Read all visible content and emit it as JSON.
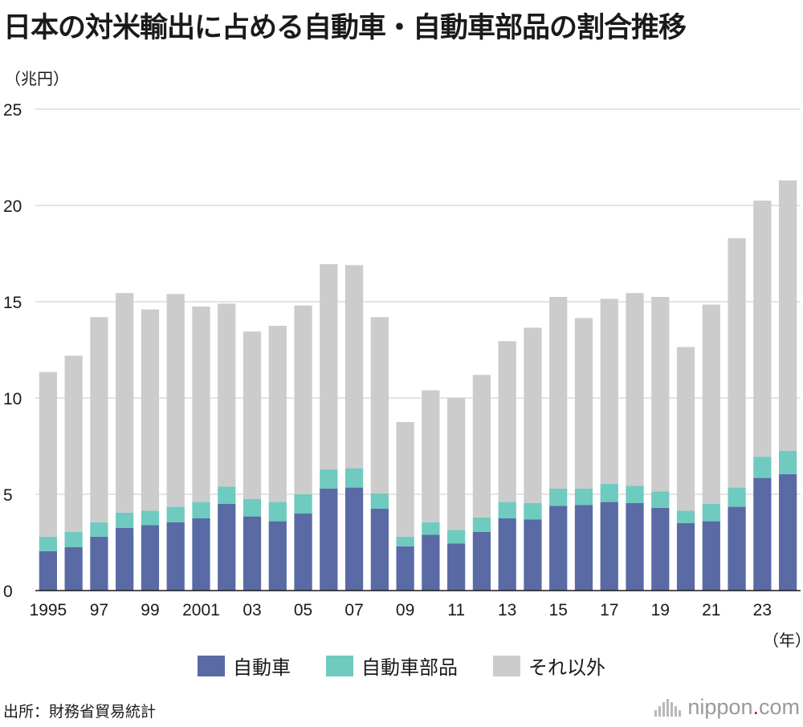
{
  "header": {
    "title": "日本の対米輸出に占める自動車・自動車部品の割合推移",
    "unit_y": "（兆円）",
    "unit_x": "（年）"
  },
  "footer": {
    "source": "出所：財務省貿易統計",
    "logo_main": "nippon",
    "logo_dot": ".",
    "logo_suffix": "com",
    "logo_accent": "#e2001a"
  },
  "chart_data": {
    "type": "bar",
    "stacked": true,
    "title": "日本の対米輸出に占める自動車・自動車部品の割合推移",
    "ylabel": "（兆円）",
    "xlabel": "（年）",
    "ylim": [
      0,
      25
    ],
    "yticks": [
      0,
      5,
      10,
      15,
      20,
      25
    ],
    "grid": true,
    "legend_position": "bottom-center",
    "categories": [
      "1995",
      "1996",
      "1997",
      "1998",
      "1999",
      "2000",
      "2001",
      "2002",
      "2003",
      "2004",
      "2005",
      "2006",
      "2007",
      "2008",
      "2009",
      "2010",
      "2011",
      "2012",
      "2013",
      "2014",
      "2015",
      "2016",
      "2017",
      "2018",
      "2019",
      "2020",
      "2021",
      "2022",
      "2023",
      "2024"
    ],
    "tick_labels": [
      "1995",
      "",
      "97",
      "",
      "99",
      "",
      "2001",
      "",
      "03",
      "",
      "05",
      "",
      "07",
      "",
      "09",
      "",
      "11",
      "",
      "13",
      "",
      "15",
      "",
      "17",
      "",
      "19",
      "",
      "21",
      "",
      "23",
      ""
    ],
    "series": [
      {
        "name": "自動車",
        "color": "#5a6aa5",
        "values": [
          2.05,
          2.25,
          2.8,
          3.25,
          3.4,
          3.55,
          3.75,
          4.5,
          3.85,
          3.6,
          4.0,
          5.3,
          5.35,
          4.25,
          2.3,
          2.9,
          2.45,
          3.05,
          3.75,
          3.7,
          4.4,
          4.45,
          4.6,
          4.55,
          4.3,
          3.5,
          3.6,
          4.35,
          5.85,
          6.05
        ]
      },
      {
        "name": "自動車部品",
        "color": "#6fcabf",
        "values": [
          0.75,
          0.8,
          0.75,
          0.8,
          0.75,
          0.8,
          0.85,
          0.9,
          0.9,
          1.0,
          1.0,
          1.0,
          1.0,
          0.8,
          0.5,
          0.65,
          0.7,
          0.75,
          0.85,
          0.85,
          0.9,
          0.85,
          0.95,
          0.9,
          0.85,
          0.65,
          0.9,
          1.0,
          1.1,
          1.2
        ]
      },
      {
        "name": "それ以外",
        "color": "#cccccc",
        "values": [
          8.55,
          9.15,
          10.65,
          11.4,
          10.45,
          11.05,
          10.15,
          9.5,
          8.7,
          9.15,
          9.8,
          10.65,
          10.55,
          9.15,
          5.95,
          6.85,
          6.85,
          7.4,
          8.35,
          9.1,
          9.95,
          8.85,
          9.6,
          10.0,
          10.1,
          8.5,
          10.35,
          12.95,
          13.3,
          14.05
        ]
      }
    ]
  }
}
